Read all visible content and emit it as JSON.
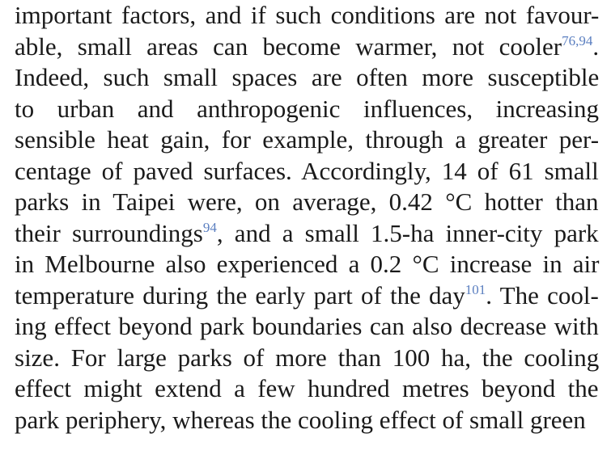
{
  "document": {
    "lines": [
      {
        "parts": [
          {
            "text": "important factors, and if such conditions are not favour-"
          }
        ]
      },
      {
        "parts": [
          {
            "text": "able, small areas can become warmer, not cooler"
          },
          {
            "text": "76,94",
            "ref": true
          },
          {
            "text": "."
          }
        ]
      },
      {
        "parts": [
          {
            "text": "Indeed, such small spaces are often more susceptible"
          }
        ]
      },
      {
        "parts": [
          {
            "text": "to urban and anthropogenic influences, increasing"
          }
        ]
      },
      {
        "parts": [
          {
            "text": "sensible heat gain, for example, through a greater per-"
          }
        ]
      },
      {
        "parts": [
          {
            "text": "centage of paved surfaces. Accordingly, 14 of 61 small"
          }
        ]
      },
      {
        "parts": [
          {
            "text": "parks in Taipei were, on average, 0.42 °C hotter than"
          }
        ]
      },
      {
        "parts": [
          {
            "text": "their surroundings"
          },
          {
            "text": "94",
            "ref": true
          },
          {
            "text": ", and a small 1.5-ha inner-city park"
          }
        ]
      },
      {
        "parts": [
          {
            "text": "in Melbourne also experienced a 0.2 °C increase in air"
          }
        ]
      },
      {
        "parts": [
          {
            "text": "temperature during the early part of the day"
          },
          {
            "text": "101",
            "ref": true
          },
          {
            "text": ". The cool-"
          }
        ]
      },
      {
        "parts": [
          {
            "text": "ing effect beyond park boundaries can also decrease with"
          }
        ]
      },
      {
        "parts": [
          {
            "text": "size. For large parks of more than 100 ha, the cooling"
          }
        ]
      },
      {
        "parts": [
          {
            "text": "effect might extend a few hundred metres beyond the"
          }
        ]
      },
      {
        "parts": [
          {
            "text": "park periphery, whereas the cooling effect of small green"
          }
        ]
      }
    ]
  }
}
